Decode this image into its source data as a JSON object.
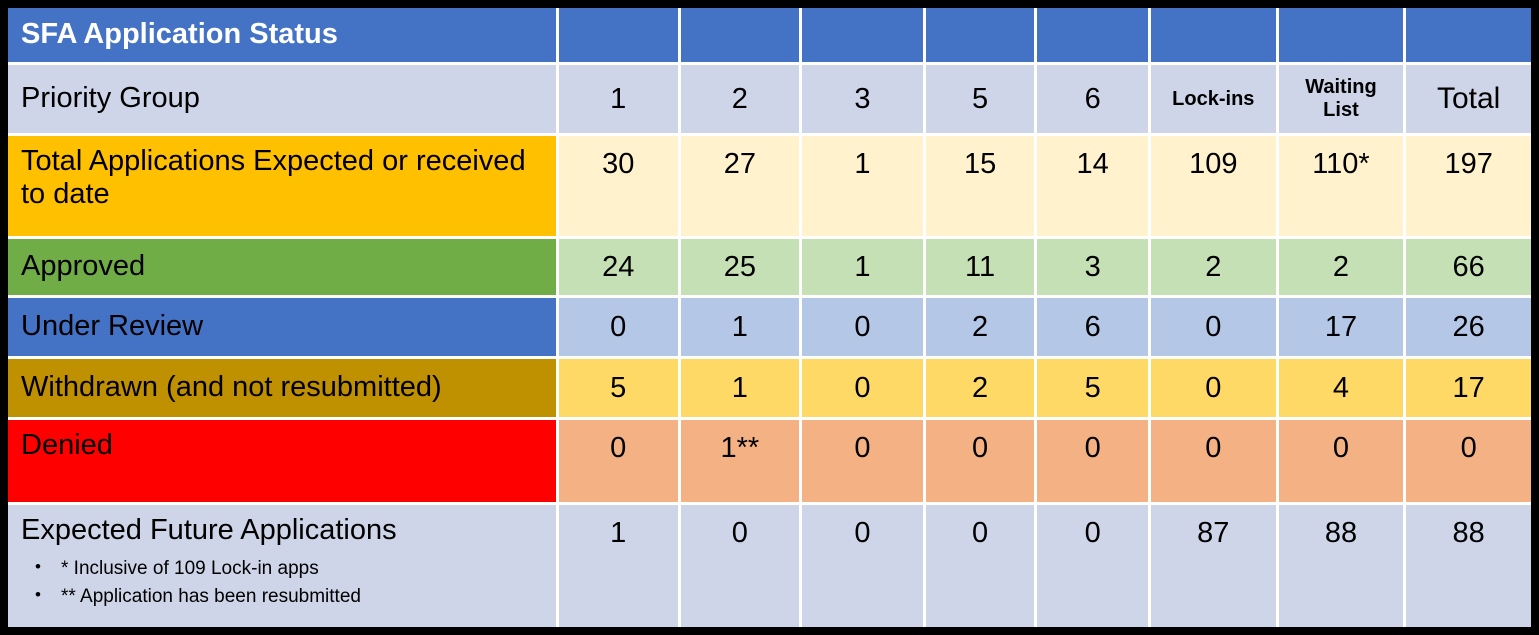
{
  "table": {
    "title": "SFA Application Status",
    "header": {
      "label": "Priority Group",
      "columns": [
        "1",
        "2",
        "3",
        "5",
        "6",
        "Lock-ins",
        "Waiting List",
        "Total"
      ]
    },
    "rows": [
      {
        "label": "Total Applications Expected or received to date",
        "values": [
          "30",
          "27",
          "1",
          "15",
          "14",
          "109",
          "110*",
          "197"
        ]
      },
      {
        "label": "Approved",
        "values": [
          "24",
          "25",
          "1",
          "11",
          "3",
          "2",
          "2",
          "66"
        ]
      },
      {
        "label": "Under Review",
        "values": [
          "0",
          "1",
          "0",
          "2",
          "6",
          "0",
          "17",
          "26"
        ]
      },
      {
        "label": "Withdrawn (and not resubmitted)",
        "values": [
          "5",
          "1",
          "0",
          "2",
          "5",
          "0",
          "4",
          "17"
        ]
      },
      {
        "label": "Denied",
        "values": [
          "0",
          "1**",
          "0",
          "0",
          "0",
          "0",
          "0",
          "0"
        ]
      },
      {
        "label": "Expected Future Applications",
        "values": [
          "1",
          "0",
          "0",
          "0",
          "0",
          "87",
          "88",
          "88"
        ]
      }
    ],
    "footnotes": [
      "* Inclusive of 109 Lock-in apps",
      "** Application has been resubmitted"
    ]
  },
  "colors": {
    "header_blue": "#4472C4",
    "lavender": "#CED5E8",
    "gold": "#FFC000",
    "cream": "#FFF2CC",
    "green": "#70AD47",
    "light_green": "#C5E0B4",
    "light_blue": "#B4C7E7",
    "dark_gold": "#BF9000",
    "yellow": "#FFD966",
    "red": "#FF0000",
    "peach": "#F4B183",
    "frame_black": "#000000",
    "gridline_white": "#FFFFFF"
  },
  "chart_data": {
    "type": "table",
    "title": "SFA Application Status",
    "columns": [
      "Priority Group",
      "1",
      "2",
      "3",
      "5",
      "6",
      "Lock-ins",
      "Waiting List",
      "Total"
    ],
    "rows": [
      [
        "Total Applications Expected or received to date",
        30,
        27,
        1,
        15,
        14,
        109,
        "110*",
        197
      ],
      [
        "Approved",
        24,
        25,
        1,
        11,
        3,
        2,
        2,
        66
      ],
      [
        "Under Review",
        0,
        1,
        0,
        2,
        6,
        0,
        17,
        26
      ],
      [
        "Withdrawn (and not resubmitted)",
        5,
        1,
        0,
        2,
        5,
        0,
        4,
        17
      ],
      [
        "Denied",
        0,
        "1**",
        0,
        0,
        0,
        0,
        0,
        0
      ],
      [
        "Expected Future Applications",
        1,
        0,
        0,
        0,
        0,
        87,
        88,
        88
      ]
    ],
    "footnotes": [
      "* Inclusive of 109 Lock-in apps",
      "** Application has been resubmitted"
    ],
    "row_label_colors": [
      "#FFC000",
      "#70AD47",
      "#4472C4",
      "#BF9000",
      "#FF0000",
      "#CED5E8"
    ],
    "row_value_colors": [
      "#FFF2CC",
      "#C5E0B4",
      "#B4C7E7",
      "#FFD966",
      "#F4B183",
      "#CED5E8"
    ]
  }
}
